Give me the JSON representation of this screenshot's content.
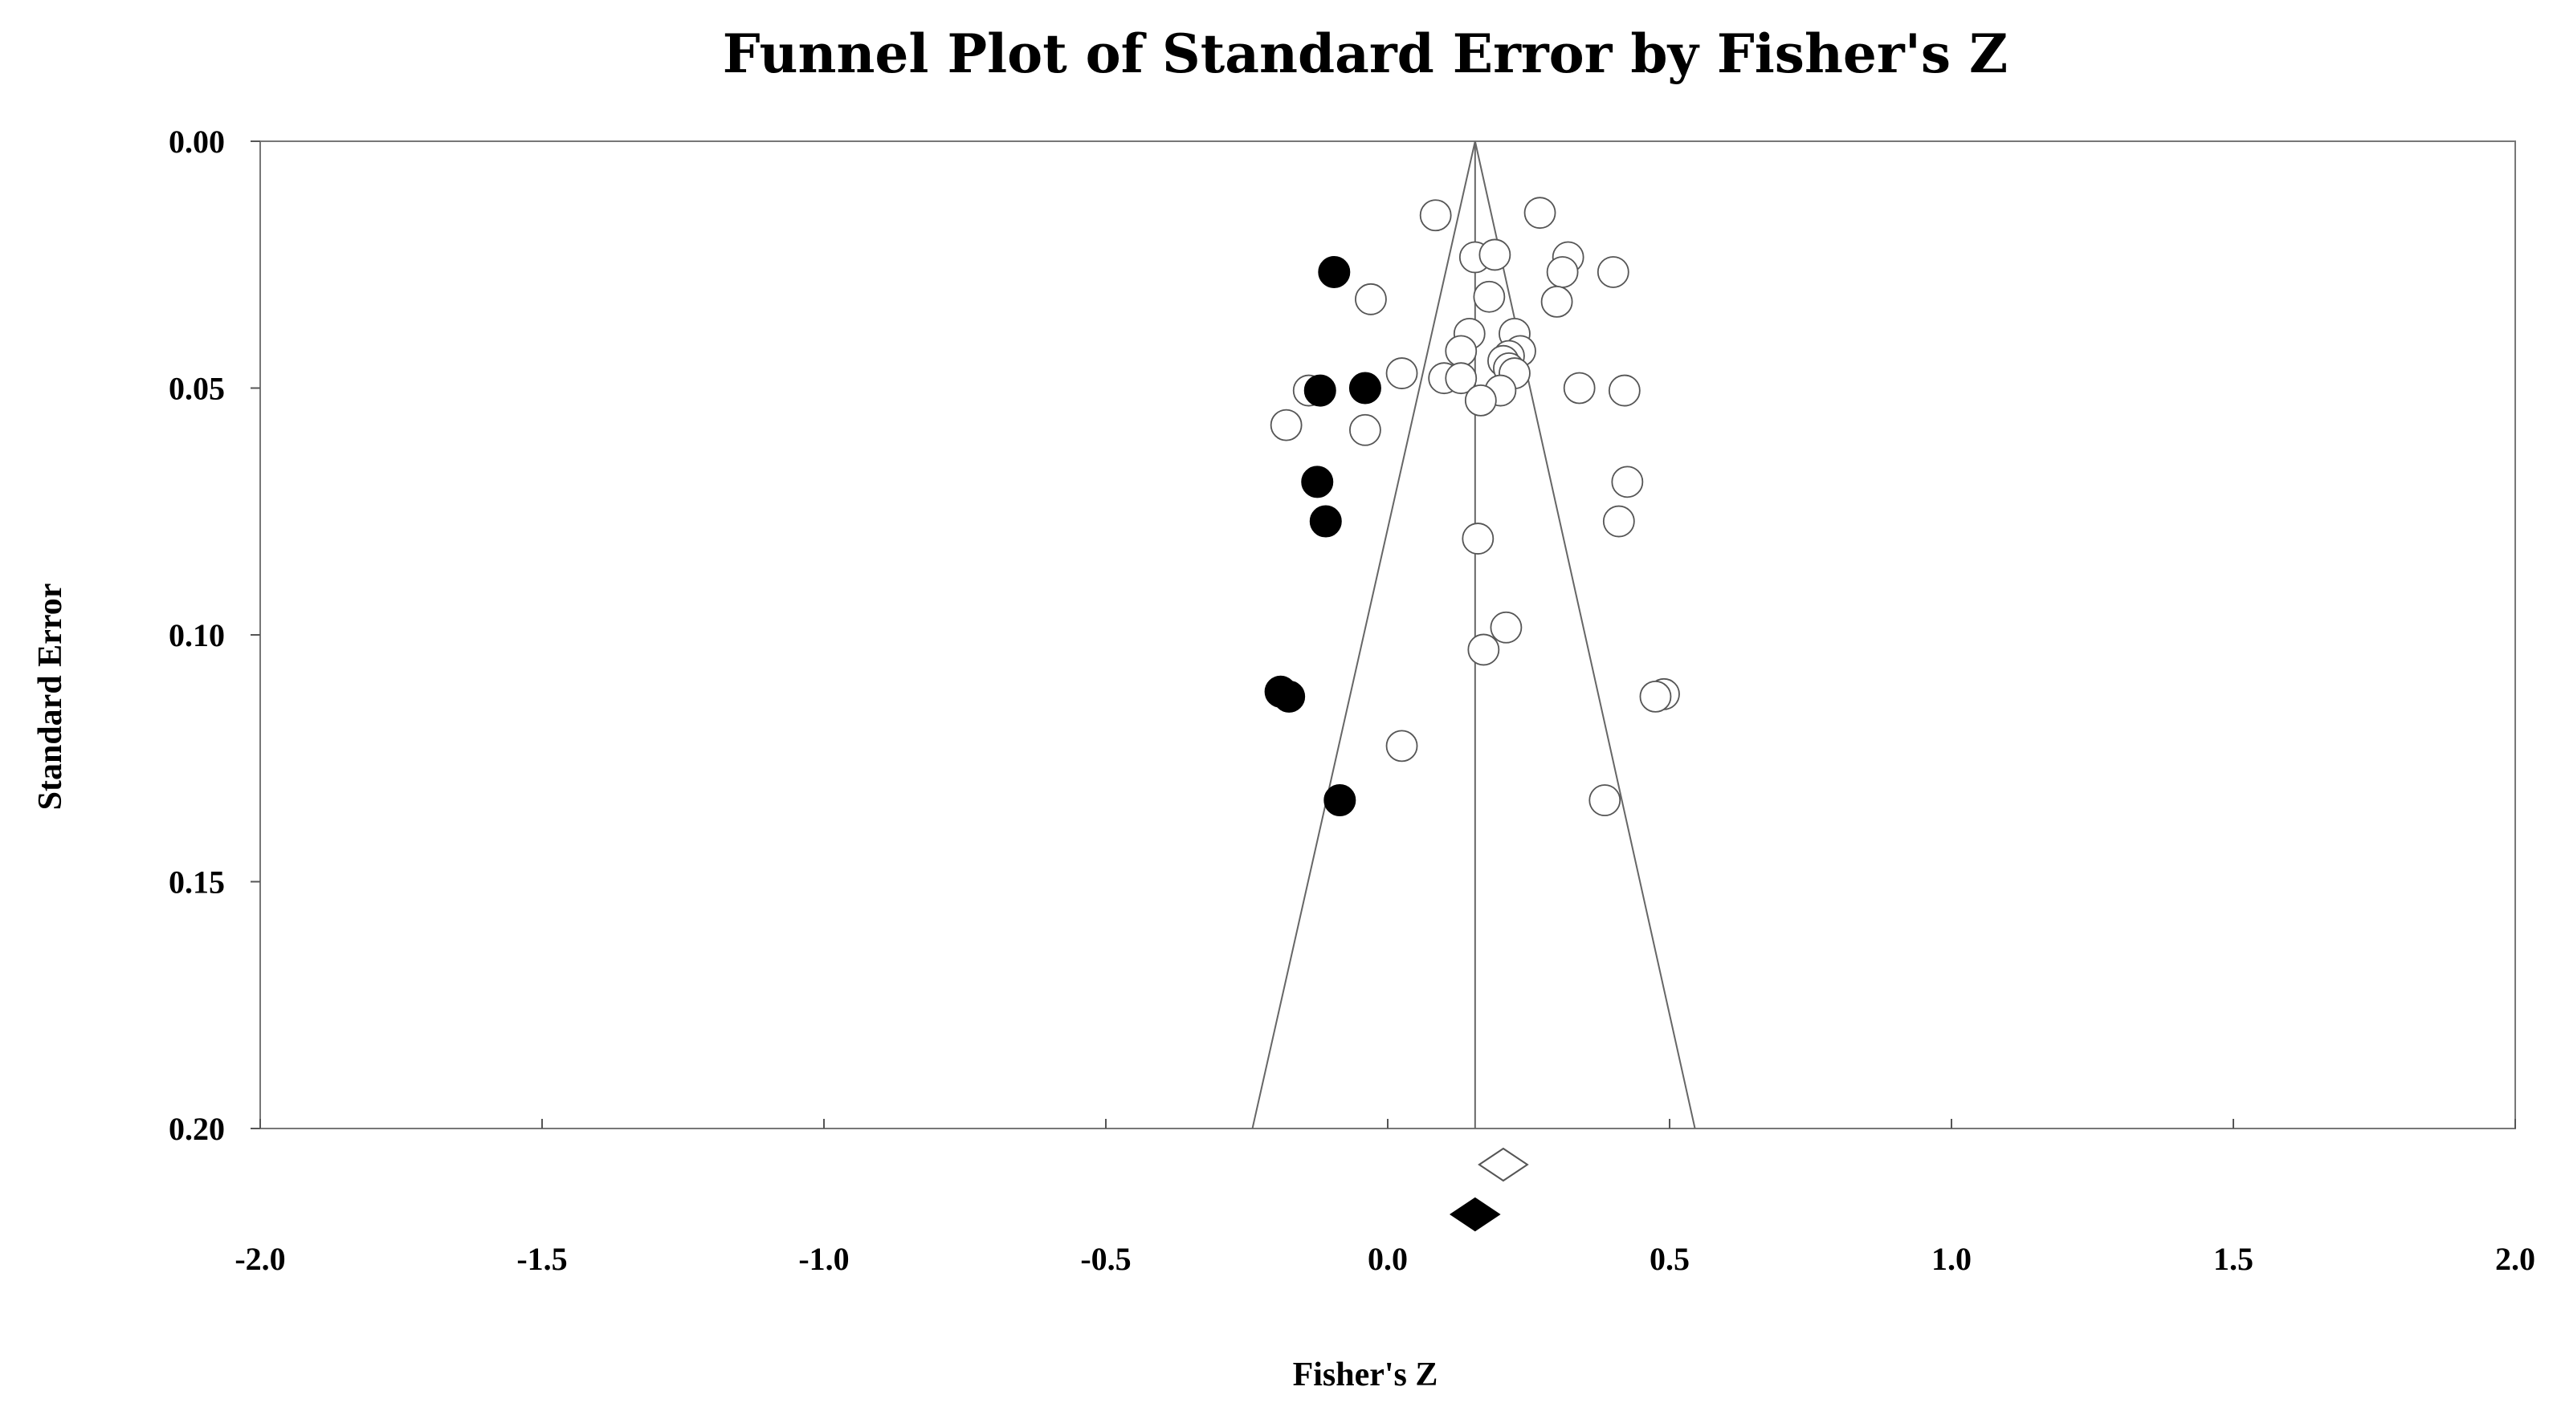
{
  "chart_data": {
    "type": "scatter",
    "title": "Funnel Plot of Standard Error by Fisher's Z",
    "xlabel": "Fisher's Z",
    "ylabel": "Standard Error",
    "xlim": [
      -2.0,
      2.0
    ],
    "ylim": [
      0.0,
      0.2
    ],
    "y_inverted": true,
    "x_ticks": [
      "-2.0",
      "-1.5",
      "-1.0",
      "-0.5",
      "0.0",
      "0.5",
      "1.0",
      "1.5",
      "2.0"
    ],
    "y_ticks": [
      "0.00",
      "0.05",
      "0.10",
      "0.15",
      "0.20"
    ],
    "grid": false,
    "legend": "none",
    "pooled_estimate": 0.155,
    "funnel": {
      "apex": [
        0.155,
        0.0
      ],
      "left_base": [
        -0.24,
        0.2
      ],
      "right_base": [
        0.545,
        0.2
      ]
    },
    "series": [
      {
        "style": "open",
        "points": [
          {
            "x": 0.085,
            "y": 0.015
          },
          {
            "x": 0.27,
            "y": 0.0145
          },
          {
            "x": 0.155,
            "y": 0.0235
          },
          {
            "x": 0.19,
            "y": 0.023
          },
          {
            "x": 0.32,
            "y": 0.0235
          },
          {
            "x": 0.31,
            "y": 0.0265
          },
          {
            "x": 0.4,
            "y": 0.0265
          },
          {
            "x": -0.03,
            "y": 0.032
          },
          {
            "x": 0.18,
            "y": 0.0315
          },
          {
            "x": 0.3,
            "y": 0.0325
          },
          {
            "x": 0.145,
            "y": 0.039
          },
          {
            "x": 0.225,
            "y": 0.039
          },
          {
            "x": 0.13,
            "y": 0.0425
          },
          {
            "x": 0.235,
            "y": 0.0425
          },
          {
            "x": 0.215,
            "y": 0.0435
          },
          {
            "x": 0.205,
            "y": 0.0445
          },
          {
            "x": 0.215,
            "y": 0.046
          },
          {
            "x": 0.225,
            "y": 0.047
          },
          {
            "x": 0.025,
            "y": 0.047
          },
          {
            "x": 0.1,
            "y": 0.048
          },
          {
            "x": 0.13,
            "y": 0.048
          },
          {
            "x": 0.2,
            "y": 0.0505
          },
          {
            "x": 0.34,
            "y": 0.05
          },
          {
            "x": 0.42,
            "y": 0.0505
          },
          {
            "x": -0.14,
            "y": 0.0505
          },
          {
            "x": 0.165,
            "y": 0.0525
          },
          {
            "x": -0.18,
            "y": 0.0575
          },
          {
            "x": -0.04,
            "y": 0.0585
          },
          {
            "x": 0.425,
            "y": 0.069
          },
          {
            "x": 0.41,
            "y": 0.077
          },
          {
            "x": 0.16,
            "y": 0.0805
          },
          {
            "x": 0.21,
            "y": 0.0985
          },
          {
            "x": 0.17,
            "y": 0.103
          },
          {
            "x": 0.49,
            "y": 0.112
          },
          {
            "x": 0.475,
            "y": 0.1125
          },
          {
            "x": 0.025,
            "y": 0.1225
          },
          {
            "x": 0.385,
            "y": 0.1335
          }
        ]
      },
      {
        "style": "filled",
        "points": [
          {
            "x": -0.095,
            "y": 0.0265
          },
          {
            "x": -0.12,
            "y": 0.0505
          },
          {
            "x": -0.04,
            "y": 0.05
          },
          {
            "x": -0.125,
            "y": 0.069
          },
          {
            "x": -0.11,
            "y": 0.077
          },
          {
            "x": -0.19,
            "y": 0.1115
          },
          {
            "x": -0.175,
            "y": 0.1125
          },
          {
            "x": -0.085,
            "y": 0.1335
          }
        ]
      }
    ],
    "summary_markers": [
      {
        "style": "open",
        "x": 0.205
      },
      {
        "style": "filled",
        "x": 0.155
      }
    ]
  }
}
